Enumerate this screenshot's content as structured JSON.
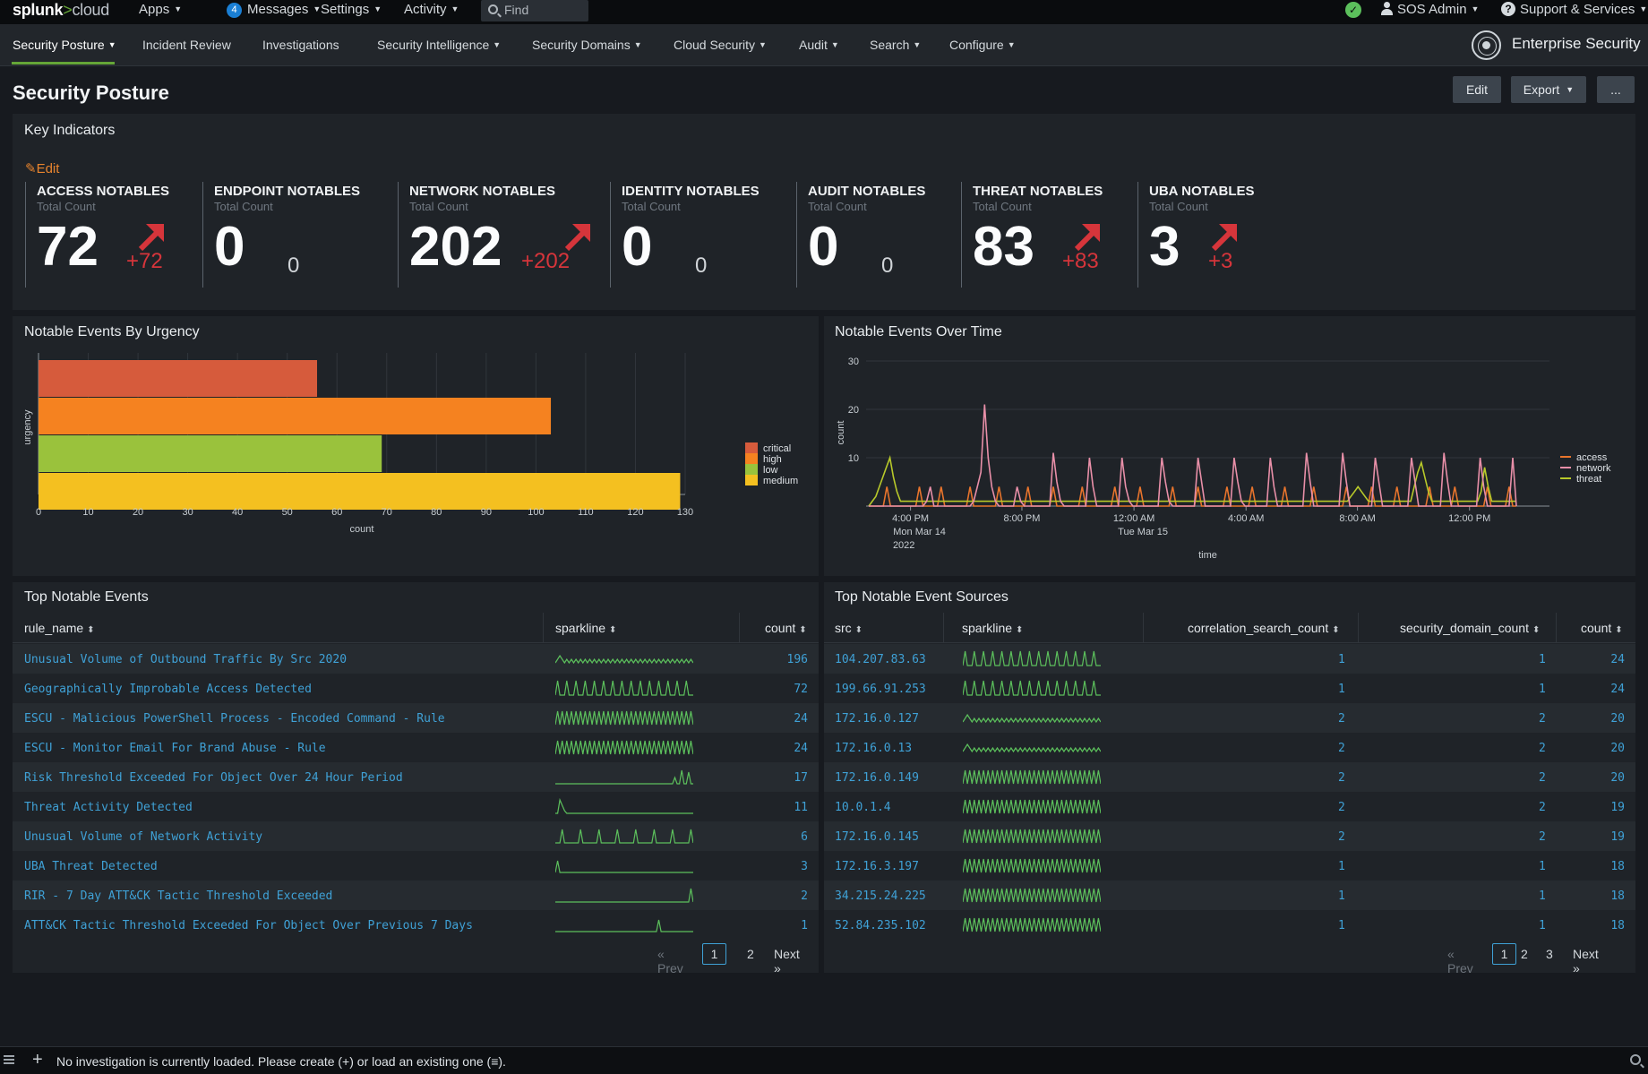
{
  "topbar": {
    "logo_main": "splunk",
    "logo_sep": ">",
    "logo_cloud": "cloud",
    "menus": [
      {
        "label": "Apps",
        "left": 155
      },
      {
        "label": "Messages",
        "left": 253
      },
      {
        "label": "Settings",
        "left": 358
      },
      {
        "label": "Activity",
        "left": 451
      }
    ],
    "messages_count": "4",
    "find_placeholder": "Find",
    "status_icon": "check-circle-icon",
    "user_label": "SOS Admin",
    "support_label": "Support & Services"
  },
  "appnav": {
    "items": [
      {
        "label": "Security Posture",
        "caret": true,
        "active": true
      },
      {
        "label": "Incident Review",
        "caret": false
      },
      {
        "label": "Investigations",
        "caret": false
      },
      {
        "label": "Security Intelligence",
        "caret": true
      },
      {
        "label": "Security Domains",
        "caret": true
      },
      {
        "label": "Cloud Security",
        "caret": true
      },
      {
        "label": "Audit",
        "caret": true
      },
      {
        "label": "Search",
        "caret": true
      },
      {
        "label": "Configure",
        "caret": true
      }
    ],
    "app_title": "Enterprise Security",
    "app_icon": "enterprise-security-globe-icon"
  },
  "page": {
    "title": "Security Posture",
    "edit_label": "Edit",
    "export_label": "Export",
    "more_label": "..."
  },
  "key_indicators": {
    "title": "Key Indicators",
    "edit_label": "Edit",
    "items": [
      {
        "label": "ACCESS NOTABLES",
        "sub": "Total Count",
        "value": "72",
        "delta": "+72",
        "up": true
      },
      {
        "label": "ENDPOINT NOTABLES",
        "sub": "Total Count",
        "value": "0",
        "delta": "0",
        "up": false
      },
      {
        "label": "NETWORK NOTABLES",
        "sub": "Total Count",
        "value": "202",
        "delta": "+202",
        "up": true
      },
      {
        "label": "IDENTITY NOTABLES",
        "sub": "Total Count",
        "value": "0",
        "delta": "0",
        "up": false
      },
      {
        "label": "AUDIT NOTABLES",
        "sub": "Total Count",
        "value": "0",
        "delta": "0",
        "up": false
      },
      {
        "label": "THREAT NOTABLES",
        "sub": "Total Count",
        "value": "83",
        "delta": "+83",
        "up": true
      },
      {
        "label": "UBA NOTABLES",
        "sub": "Total Count",
        "value": "3",
        "delta": "+3",
        "up": true
      }
    ],
    "colors": {
      "delta_up": "#d6353b"
    }
  },
  "chart_data": [
    {
      "type": "bar",
      "orientation": "horizontal",
      "title": "Notable Events By Urgency",
      "xlabel": "count",
      "ylabel": "urgency",
      "categories": [
        "critical",
        "high",
        "low",
        "medium"
      ],
      "values": [
        56,
        103,
        69,
        129
      ],
      "colors": [
        "#d65b3c",
        "#f58220",
        "#9ac23c",
        "#f4c020"
      ],
      "xlim": [
        0,
        130
      ],
      "xticks": [
        0,
        10,
        20,
        30,
        40,
        50,
        60,
        70,
        80,
        90,
        100,
        110,
        120,
        130
      ],
      "legend": "right",
      "grid": true
    },
    {
      "type": "line",
      "title": "Notable Events Over Time",
      "xlabel": "time",
      "ylabel": "count",
      "ylim": [
        0,
        30
      ],
      "yticks": [
        10,
        20,
        30
      ],
      "xtick_labels": [
        {
          "lines": [
            "4:00 PM",
            "Mon Mar 14",
            "2022"
          ],
          "pos": 0.065
        },
        {
          "lines": [
            "8:00 PM"
          ],
          "pos": 0.228
        },
        {
          "lines": [
            "12:00 AM",
            "Tue Mar 15"
          ],
          "pos": 0.392
        },
        {
          "lines": [
            "4:00 AM"
          ],
          "pos": 0.556
        },
        {
          "lines": [
            "8:00 AM"
          ],
          "pos": 0.719
        },
        {
          "lines": [
            "12:00 PM"
          ],
          "pos": 0.883
        }
      ],
      "legend": "right",
      "grid": true,
      "series": [
        {
          "name": "access",
          "color": "#e8742c",
          "values": [
            0,
            0,
            0,
            0,
            0,
            4,
            0,
            0,
            0,
            0,
            0,
            0,
            0,
            0,
            4,
            0,
            0,
            0,
            0,
            0,
            4,
            0,
            0,
            0,
            0,
            0,
            0,
            0,
            4,
            0,
            0,
            0,
            0,
            0,
            0,
            0,
            4,
            0,
            0,
            0,
            0,
            0,
            0,
            0,
            4,
            0,
            0,
            0,
            0,
            0,
            0,
            4,
            0,
            0,
            0,
            0,
            0,
            0,
            0,
            4,
            0,
            0,
            0,
            0,
            0,
            0,
            0,
            0,
            4,
            0,
            0,
            0,
            0,
            0,
            0,
            4,
            0,
            0,
            0,
            0,
            0,
            0,
            0,
            0,
            4,
            0,
            0,
            0,
            0,
            0,
            0,
            4,
            0,
            0,
            0,
            0,
            0,
            0,
            0,
            4,
            0,
            0,
            0,
            0,
            0,
            0,
            4,
            0,
            0,
            0,
            0,
            0,
            0,
            0,
            0,
            4,
            0,
            0,
            0,
            0,
            0,
            0,
            0,
            4,
            0,
            0,
            0,
            0,
            0,
            0,
            0,
            0,
            4,
            0,
            0,
            0,
            0,
            0,
            0,
            4,
            0,
            0,
            0,
            0,
            0,
            0,
            4,
            0,
            0,
            0,
            0,
            0,
            0,
            0,
            0,
            4,
            0,
            0,
            0,
            0,
            0,
            0,
            4,
            0,
            0,
            0,
            0,
            0,
            0,
            0,
            0,
            4,
            0,
            0,
            0,
            0,
            0,
            4,
            0,
            0
          ]
        },
        {
          "name": "network",
          "color": "#e88fa8",
          "values": [
            0,
            0,
            0,
            0,
            0,
            0,
            0,
            0,
            0,
            0,
            0,
            0,
            0,
            0,
            0,
            0,
            1,
            4,
            0,
            0,
            0,
            0,
            0,
            0,
            0,
            0,
            0,
            0,
            0,
            1,
            4,
            7,
            21,
            10,
            4,
            1,
            0,
            0,
            0,
            0,
            0,
            4,
            1,
            0,
            0,
            0,
            0,
            0,
            0,
            0,
            0,
            11,
            5,
            1,
            0,
            0,
            0,
            0,
            0,
            0,
            0,
            10,
            4,
            0,
            0,
            0,
            0,
            0,
            0,
            0,
            10,
            4,
            1,
            0,
            0,
            0,
            0,
            0,
            0,
            0,
            0,
            10,
            5,
            1,
            0,
            0,
            0,
            0,
            0,
            0,
            0,
            10,
            5,
            0,
            0,
            0,
            0,
            0,
            0,
            0,
            0,
            10,
            5,
            1,
            0,
            0,
            0,
            0,
            0,
            0,
            0,
            10,
            4,
            0,
            0,
            0,
            0,
            0,
            0,
            0,
            0,
            11,
            5,
            0,
            0,
            0,
            0,
            0,
            0,
            0,
            0,
            11,
            5,
            0,
            0,
            0,
            0,
            0,
            0,
            0,
            10,
            5,
            0,
            0,
            0,
            0,
            0,
            0,
            0,
            0,
            10,
            5,
            0,
            0,
            0,
            0,
            0,
            0,
            0,
            11,
            5,
            0,
            0,
            0,
            0,
            0,
            0,
            0,
            0,
            10,
            4,
            0,
            0,
            0,
            0,
            0,
            0,
            0,
            10,
            0
          ]
        },
        {
          "name": "threat",
          "color": "#b8c92a",
          "values": [
            0,
            1,
            2,
            4,
            6,
            8,
            10,
            6,
            3,
            1,
            1,
            1,
            1,
            1,
            1,
            1,
            1,
            1,
            1,
            1,
            1,
            1,
            1,
            1,
            1,
            1,
            1,
            1,
            1,
            1,
            1,
            1,
            1,
            1,
            1,
            1,
            1,
            1,
            1,
            1,
            1,
            1,
            1,
            1,
            1,
            1,
            1,
            1,
            1,
            1,
            1,
            1,
            1,
            1,
            1,
            1,
            1,
            1,
            1,
            1,
            1,
            1,
            1,
            1,
            1,
            1,
            1,
            1,
            1,
            1,
            1,
            1,
            1,
            1,
            1,
            1,
            1,
            1,
            1,
            1,
            1,
            1,
            1,
            1,
            1,
            1,
            1,
            1,
            1,
            1,
            1,
            1,
            1,
            1,
            1,
            1,
            1,
            1,
            1,
            1,
            1,
            1,
            1,
            1,
            1,
            1,
            1,
            1,
            1,
            1,
            1,
            1,
            1,
            1,
            1,
            1,
            1,
            1,
            1,
            1,
            1,
            1,
            1,
            1,
            1,
            1,
            1,
            1,
            1,
            1,
            1,
            1,
            1,
            1,
            1,
            1,
            1,
            2,
            3,
            4,
            3,
            2,
            1,
            1,
            1,
            1,
            1,
            1,
            1,
            1,
            1,
            1,
            1,
            1,
            1,
            4,
            7,
            9,
            6,
            3,
            1,
            1,
            1,
            1,
            1,
            1,
            1,
            1,
            1,
            1,
            1,
            1,
            1,
            1,
            3,
            8,
            4,
            1,
            1,
            1,
            1,
            1,
            1,
            1,
            1
          ]
        }
      ]
    }
  ],
  "top_events": {
    "title": "Top Notable Events",
    "columns": [
      "rule_name",
      "sparkline",
      "count"
    ],
    "rows": [
      {
        "name": "Unusual Volume of Outbound Traffic By Src 2020",
        "count": "196",
        "spark": "dense-low"
      },
      {
        "name": "Geographically Improbable Access Detected",
        "count": "72",
        "spark": "spikes"
      },
      {
        "name": "ESCU - Malicious PowerShell Process - Encoded Command - Rule",
        "count": "24",
        "spark": "dense-high"
      },
      {
        "name": "ESCU - Monitor Email For Brand Abuse - Rule",
        "count": "24",
        "spark": "dense-high"
      },
      {
        "name": "Risk Threshold Exceeded For Object Over 24 Hour Period",
        "count": "17",
        "spark": "tail"
      },
      {
        "name": "Threat Activity Detected",
        "count": "11",
        "spark": "head"
      },
      {
        "name": "Unusual Volume of Network Activity",
        "count": "6",
        "spark": "sparse"
      },
      {
        "name": "UBA Threat Detected",
        "count": "3",
        "spark": "head-small"
      },
      {
        "name": "RIR - 7 Day ATT&CK Tactic Threshold Exceeded",
        "count": "2",
        "spark": "end"
      },
      {
        "name": "ATT&CK Tactic Threshold Exceeded For Object Over Previous 7 Days",
        "count": "1",
        "spark": "late"
      }
    ],
    "pager": {
      "prev": "« Prev",
      "pages": [
        "1",
        "2"
      ],
      "current": "1",
      "next": "Next »"
    }
  },
  "top_sources": {
    "title": "Top Notable Event Sources",
    "columns": [
      "src",
      "sparkline",
      "correlation_search_count",
      "security_domain_count",
      "count"
    ],
    "rows": [
      {
        "src": "104.207.83.63",
        "csc": "1",
        "sdc": "1",
        "count": "24",
        "spark": "spikes"
      },
      {
        "src": "199.66.91.253",
        "csc": "1",
        "sdc": "1",
        "count": "24",
        "spark": "spikes"
      },
      {
        "src": "172.16.0.127",
        "csc": "2",
        "sdc": "2",
        "count": "20",
        "spark": "dense-low"
      },
      {
        "src": "172.16.0.13",
        "csc": "2",
        "sdc": "2",
        "count": "20",
        "spark": "dense-low"
      },
      {
        "src": "172.16.0.149",
        "csc": "2",
        "sdc": "2",
        "count": "20",
        "spark": "dense-high"
      },
      {
        "src": "10.0.1.4",
        "csc": "2",
        "sdc": "2",
        "count": "19",
        "spark": "dense-high"
      },
      {
        "src": "172.16.0.145",
        "csc": "2",
        "sdc": "2",
        "count": "19",
        "spark": "dense-high"
      },
      {
        "src": "172.16.3.197",
        "csc": "1",
        "sdc": "1",
        "count": "18",
        "spark": "dense-high"
      },
      {
        "src": "34.215.24.225",
        "csc": "1",
        "sdc": "1",
        "count": "18",
        "spark": "dense-high"
      },
      {
        "src": "52.84.235.102",
        "csc": "1",
        "sdc": "1",
        "count": "18",
        "spark": "dense-high"
      }
    ],
    "pager": {
      "prev": "« Prev",
      "pages": [
        "1",
        "2",
        "3"
      ],
      "current": "1",
      "next": "Next »"
    }
  },
  "bottom_bar": {
    "message": "No investigation is currently loaded. Please create (+) or load an existing one (≡)."
  }
}
